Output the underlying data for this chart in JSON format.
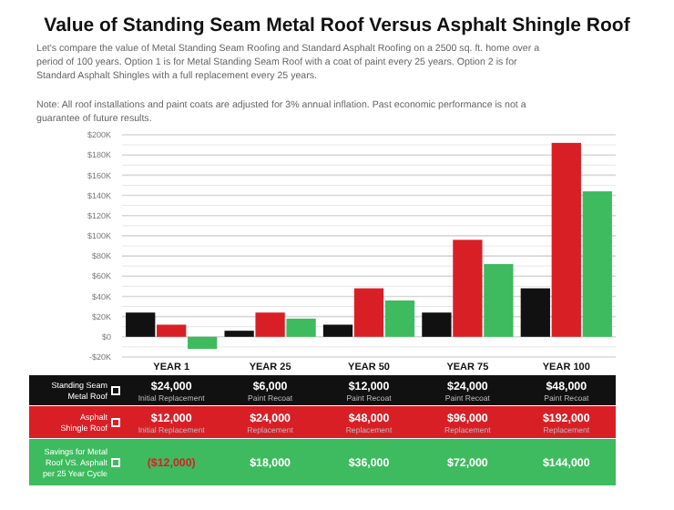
{
  "chart_data": {
    "type": "bar",
    "title": "Value of Standing Seam Metal Roof Versus Asphalt Shingle Roof",
    "subtitle": "Let's compare the value of Metal Standing Seam Roofing and Standard Asphalt Roofing on a 2500 sq. ft. home over a period of 100 years. Option 1 is for Metal Standing Seam Roof with a coat of paint every 25 years. Option 2 is for Standard Asphalt Shingles with a full replacement every 25 years.",
    "categories": [
      "YEAR 1",
      "YEAR 25",
      "YEAR 50",
      "YEAR 75",
      "YEAR 100"
    ],
    "series": [
      {
        "name": "Standing Seam Metal Roof",
        "color": "#111111",
        "values": [
          24000,
          6000,
          12000,
          24000,
          48000
        ],
        "value_labels": [
          "$24,000",
          "$6,000",
          "$12,000",
          "$24,000",
          "$48,000"
        ]
      },
      {
        "name": "Asphalt Shingle Roof",
        "color": "#d91f26",
        "values": [
          12000,
          24000,
          48000,
          96000,
          192000
        ],
        "value_labels": [
          "$12,000",
          "$24,000",
          "$48,000",
          "$96,000",
          "$192,000"
        ]
      },
      {
        "name": "Savings for Metal Roof VS. Asphalt per 25 Year Cycle",
        "color": "#3dbb5e",
        "values": [
          -12000,
          18000,
          36000,
          72000,
          144000
        ],
        "value_labels": [
          "($12,000)",
          "$18,000",
          "$36,000",
          "$72,000",
          "$144,000"
        ]
      }
    ],
    "ylim": [
      -20000,
      200000
    ],
    "yticks": [
      {
        "value": -20000,
        "label": "-$20K"
      },
      {
        "value": 0,
        "label": "$0"
      },
      {
        "value": 20000,
        "label": "$20K"
      },
      {
        "value": 40000,
        "label": "$40K"
      },
      {
        "value": 60000,
        "label": "$60K"
      },
      {
        "value": 80000,
        "label": "$80K"
      },
      {
        "value": 100000,
        "label": "$100K"
      },
      {
        "value": 120000,
        "label": "$120K"
      },
      {
        "value": 140000,
        "label": "$140K"
      },
      {
        "value": 160000,
        "label": "$160K"
      },
      {
        "value": 180000,
        "label": "$180K"
      },
      {
        "value": 200000,
        "label": "$200K"
      }
    ],
    "grid": "y",
    "legend": "bottom left",
    "annotations": [
      "Note: All roof installations and paint coats are adjusted for 3% annual inflation. Past economic performance is not a guarantee of future results.",
      "Initial Replacement",
      "Paint Recoat",
      "Paint Recoat",
      "Paint Recoat",
      "Paint Recoat",
      "Initial Replacement",
      "Replacement",
      "Replacement",
      "Replacement",
      "Replacement"
    ]
  }
}
